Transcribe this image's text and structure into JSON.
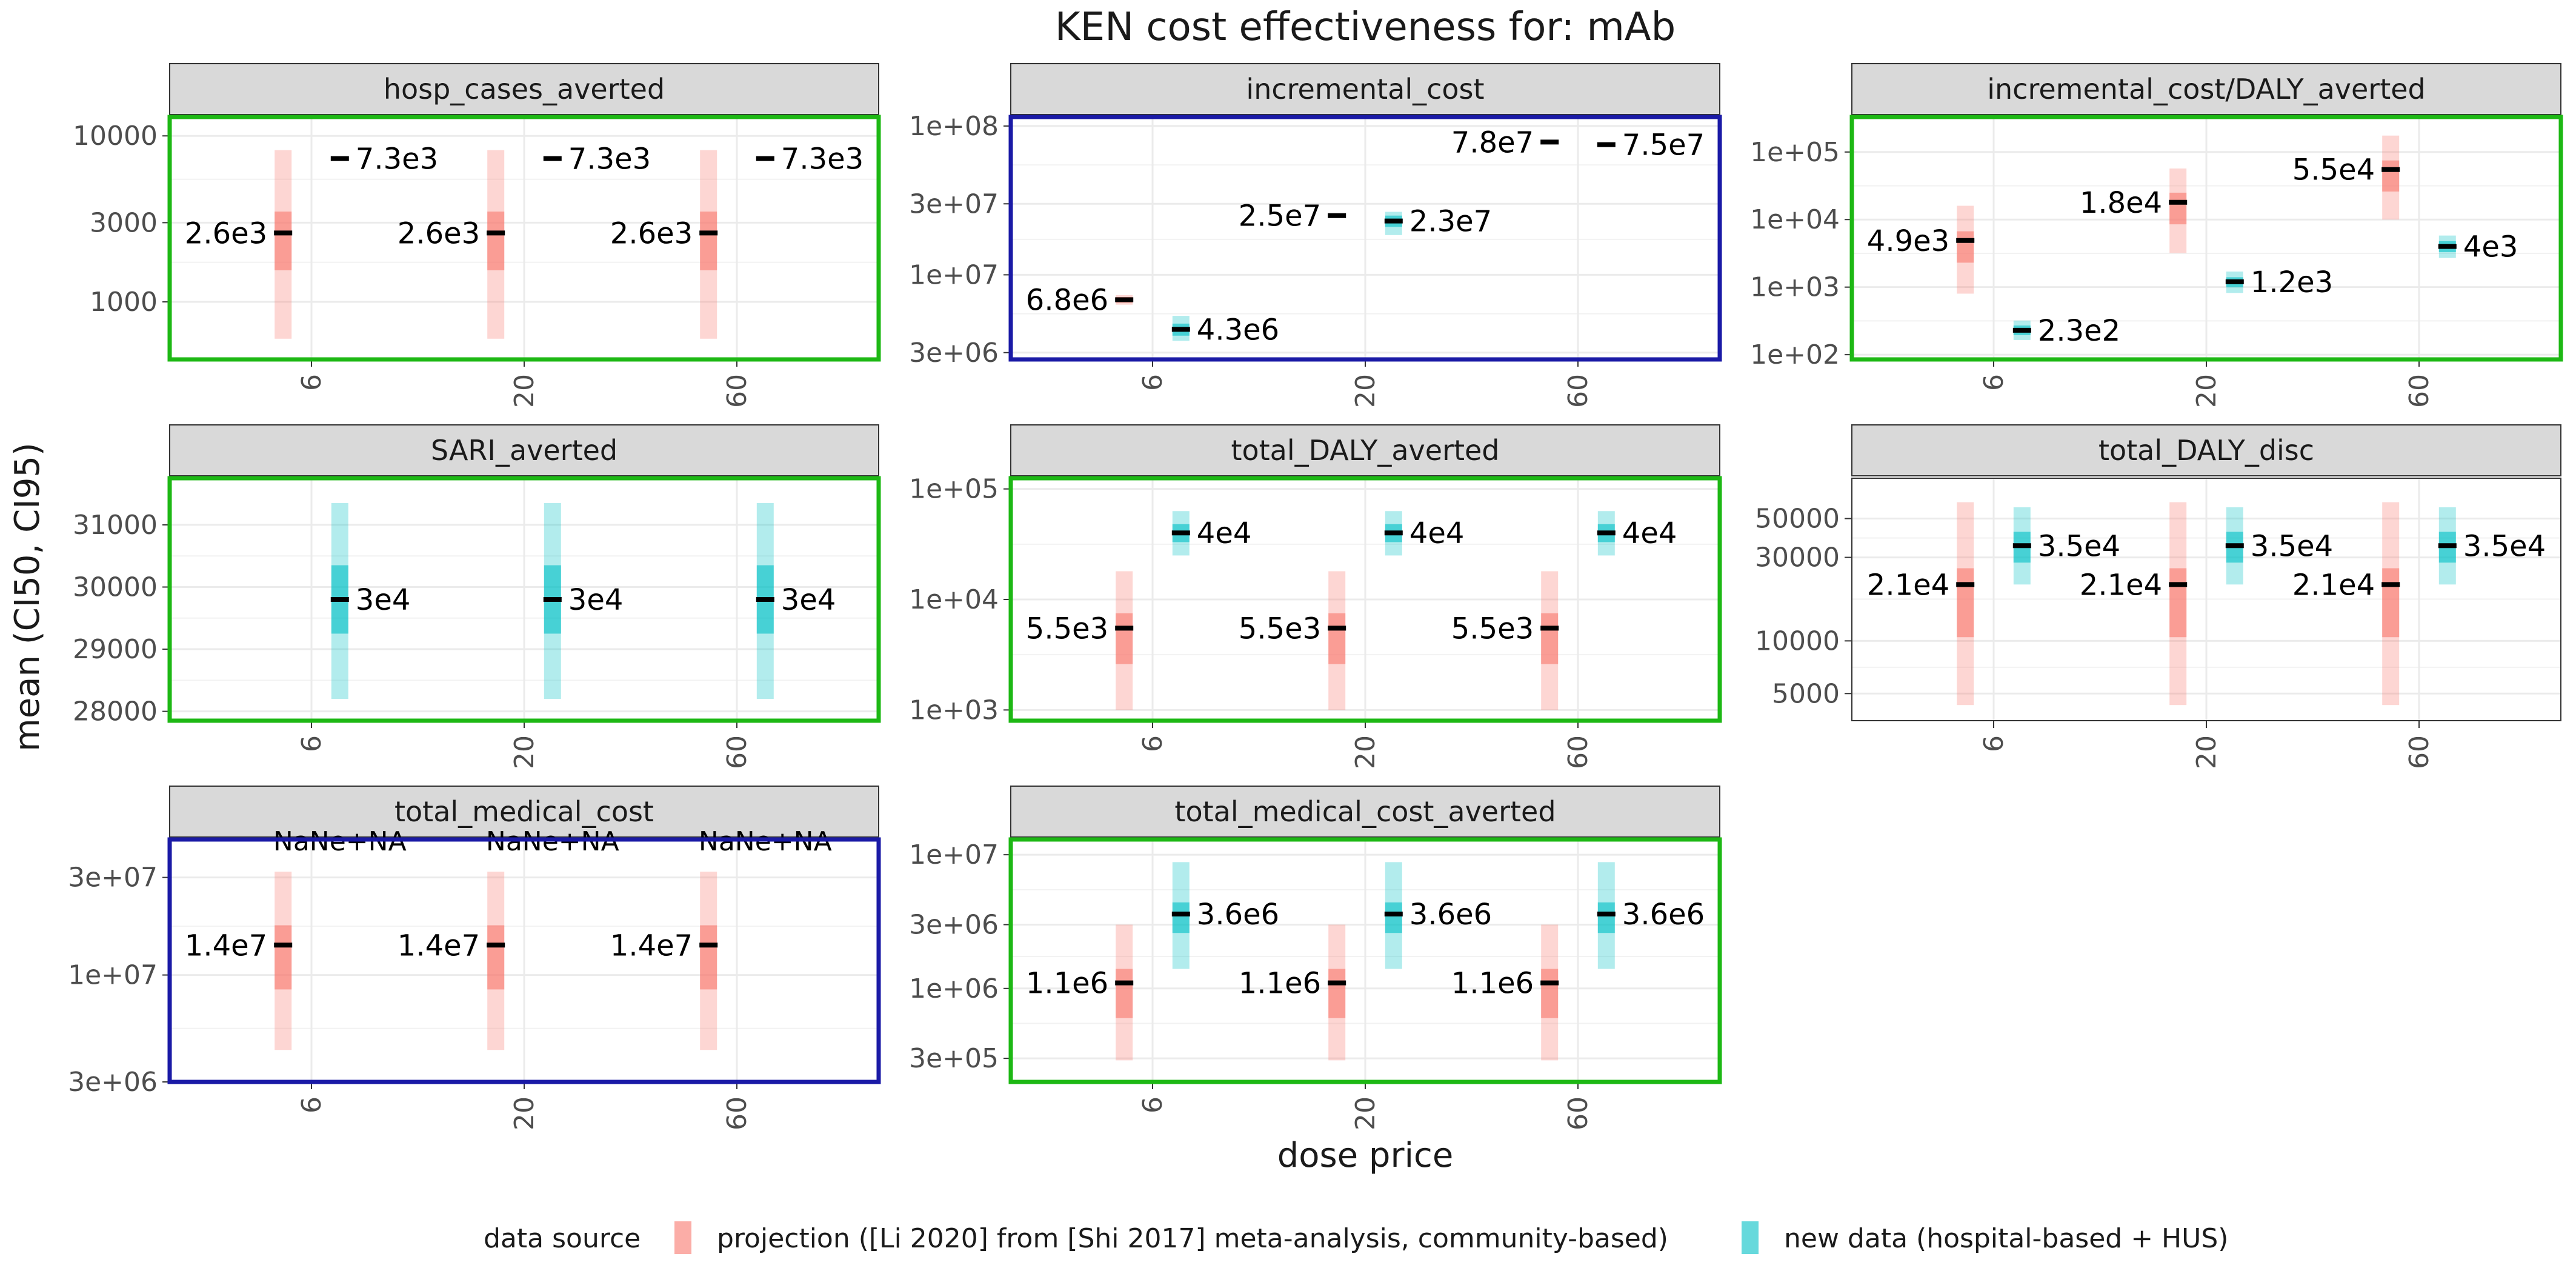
{
  "title": "KEN cost effectiveness for: mAb",
  "xlabel": "dose price",
  "ylabel": "mean (CI50, CI95)",
  "legend": {
    "title": "data source",
    "items": [
      {
        "label": "projection ([Li 2020] from [Shi 2017] meta-analysis, community-based)",
        "color": "#F8766D"
      },
      {
        "label": "new data (hospital-based + HUS)",
        "color": "#00BFC4"
      }
    ],
    "position": "bottom"
  },
  "colors": {
    "projection": "#F8766D",
    "new_data": "#00BFC4",
    "border_green": "#1DB814",
    "border_blue": "#1A1AA6",
    "strip_bg": "#D9D9D9"
  },
  "chart_data": [
    {
      "type": "range",
      "facet": "hosp_cases_averted",
      "border": "green",
      "scale": "log",
      "ylim": [
        450,
        13000
      ],
      "yticks": [
        {
          "v": 1000,
          "label": "1000"
        },
        {
          "v": 3000,
          "label": "3000"
        },
        {
          "v": 10000,
          "label": "10000"
        }
      ],
      "categories": [
        "6",
        "20",
        "60"
      ],
      "series": [
        {
          "name": "projection ([Li 2020] from [Shi 2017] meta-analysis, community-based)",
          "points": [
            {
              "x": "6",
              "mean": 2600,
              "ci50": [
                1550,
                3500
              ],
              "ci95": [
                600,
                8200
              ],
              "label": "2.6e3"
            },
            {
              "x": "20",
              "mean": 2600,
              "ci50": [
                1550,
                3500
              ],
              "ci95": [
                600,
                8200
              ],
              "label": "2.6e3"
            },
            {
              "x": "60",
              "mean": 2600,
              "ci50": [
                1550,
                3500
              ],
              "ci95": [
                600,
                8200
              ],
              "label": "2.6e3"
            }
          ]
        },
        {
          "name": "new data (hospital-based + HUS)",
          "points": [
            {
              "x": "6",
              "mean": 7300,
              "ci50": [
                7300,
                7300
              ],
              "ci95": [
                7300,
                7300
              ],
              "label": "7.3e3"
            },
            {
              "x": "20",
              "mean": 7300,
              "ci50": [
                7300,
                7300
              ],
              "ci95": [
                7300,
                7300
              ],
              "label": "7.3e3"
            },
            {
              "x": "60",
              "mean": 7300,
              "ci50": [
                7300,
                7300
              ],
              "ci95": [
                7300,
                7300
              ],
              "label": "7.3e3"
            }
          ]
        }
      ]
    },
    {
      "type": "range",
      "facet": "incremental_cost",
      "border": "blue",
      "scale": "log",
      "ylim": [
        2700000,
        115000000
      ],
      "yticks": [
        {
          "v": 3000000,
          "label": "3e+06"
        },
        {
          "v": 10000000,
          "label": "1e+07"
        },
        {
          "v": 30000000,
          "label": "3e+07"
        },
        {
          "v": 100000000,
          "label": "1e+08"
        }
      ],
      "categories": [
        "6",
        "20",
        "60"
      ],
      "series": [
        {
          "name": "projection ([Li 2020] from [Shi 2017] meta-analysis, community-based)",
          "points": [
            {
              "x": "6",
              "mean": 6800000,
              "ci50": [
                6500000,
                7100000
              ],
              "ci95": [
                6300000,
                7300000
              ],
              "label": "6.8e6"
            },
            {
              "x": "20",
              "mean": 25000000,
              "ci50": [
                25000000,
                25000000
              ],
              "ci95": [
                25000000,
                25000000
              ],
              "label": "2.5e7"
            },
            {
              "x": "60",
              "mean": 78000000,
              "ci50": [
                78000000,
                78000000
              ],
              "ci95": [
                78000000,
                78000000
              ],
              "label": "7.8e7"
            }
          ]
        },
        {
          "name": "new data (hospital-based + HUS)",
          "points": [
            {
              "x": "6",
              "mean": 4300000,
              "ci50": [
                3900000,
                4700000
              ],
              "ci95": [
                3600000,
                5300000
              ],
              "label": "4.3e6"
            },
            {
              "x": "20",
              "mean": 23000000,
              "ci50": [
                21000000,
                25000000
              ],
              "ci95": [
                18500000,
                26500000
              ],
              "label": "2.3e7"
            },
            {
              "x": "60",
              "mean": 75000000,
              "ci50": [
                75000000,
                75000000
              ],
              "ci95": [
                75000000,
                75000000
              ],
              "label": "7.5e7"
            }
          ]
        }
      ]
    },
    {
      "type": "range",
      "facet": "incremental_cost/DALY_averted",
      "border": "green",
      "scale": "log",
      "ylim": [
        85,
        330000
      ],
      "yticks": [
        {
          "v": 100,
          "label": "1e+02"
        },
        {
          "v": 1000,
          "label": "1e+03"
        },
        {
          "v": 10000,
          "label": "1e+04"
        },
        {
          "v": 100000,
          "label": "1e+05"
        }
      ],
      "categories": [
        "6",
        "20",
        "60"
      ],
      "series": [
        {
          "name": "projection ([Li 2020] from [Shi 2017] meta-analysis, community-based)",
          "points": [
            {
              "x": "6",
              "mean": 4900,
              "ci50": [
                2300,
                6700
              ],
              "ci95": [
                800,
                16000
              ],
              "label": "4.9e3"
            },
            {
              "x": "20",
              "mean": 18000,
              "ci50": [
                8500,
                25000
              ],
              "ci95": [
                3200,
                57000
              ],
              "label": "1.8e4"
            },
            {
              "x": "60",
              "mean": 55000,
              "ci50": [
                26000,
                75000
              ],
              "ci95": [
                10000,
                175000
              ],
              "label": "5.5e4"
            }
          ]
        },
        {
          "name": "new data (hospital-based + HUS)",
          "points": [
            {
              "x": "6",
              "mean": 230,
              "ci50": [
                195,
                270
              ],
              "ci95": [
                165,
                320
              ],
              "label": "2.3e2"
            },
            {
              "x": "20",
              "mean": 1200,
              "ci50": [
                1000,
                1400
              ],
              "ci95": [
                820,
                1700
              ],
              "label": "1.2e3"
            },
            {
              "x": "60",
              "mean": 4000,
              "ci50": [
                3300,
                4800
              ],
              "ci95": [
                2700,
                5800
              ],
              "label": "4e3"
            }
          ]
        }
      ]
    },
    {
      "type": "range",
      "facet": "SARI_averted",
      "border": "green",
      "scale": "linear",
      "ylim": [
        27850,
        31750
      ],
      "yticks": [
        {
          "v": 28000,
          "label": "28000"
        },
        {
          "v": 29000,
          "label": "29000"
        },
        {
          "v": 30000,
          "label": "30000"
        },
        {
          "v": 31000,
          "label": "31000"
        }
      ],
      "categories": [
        "6",
        "20",
        "60"
      ],
      "series": [
        {
          "name": "new data (hospital-based + HUS)",
          "points": [
            {
              "x": "6",
              "mean": 29800,
              "ci50": [
                29250,
                30350
              ],
              "ci95": [
                28200,
                31350
              ],
              "label": "3e4"
            },
            {
              "x": "20",
              "mean": 29800,
              "ci50": [
                29250,
                30350
              ],
              "ci95": [
                28200,
                31350
              ],
              "label": "3e4"
            },
            {
              "x": "60",
              "mean": 29800,
              "ci50": [
                29250,
                30350
              ],
              "ci95": [
                28200,
                31350
              ],
              "label": "3e4"
            }
          ]
        }
      ]
    },
    {
      "type": "range",
      "facet": "total_DALY_averted",
      "border": "green",
      "scale": "log",
      "ylim": [
        800,
        125000
      ],
      "yticks": [
        {
          "v": 1000,
          "label": "1e+03"
        },
        {
          "v": 10000,
          "label": "1e+04"
        },
        {
          "v": 100000,
          "label": "1e+05"
        }
      ],
      "categories": [
        "6",
        "20",
        "60"
      ],
      "series": [
        {
          "name": "projection ([Li 2020] from [Shi 2017] meta-analysis, community-based)",
          "points": [
            {
              "x": "6",
              "mean": 5500,
              "ci50": [
                2600,
                7500
              ],
              "ci95": [
                1000,
                18000
              ],
              "label": "5.5e3"
            },
            {
              "x": "20",
              "mean": 5500,
              "ci50": [
                2600,
                7500
              ],
              "ci95": [
                1000,
                18000
              ],
              "label": "5.5e3"
            },
            {
              "x": "60",
              "mean": 5500,
              "ci50": [
                2600,
                7500
              ],
              "ci95": [
                1000,
                18000
              ],
              "label": "5.5e3"
            }
          ]
        },
        {
          "name": "new data (hospital-based + HUS)",
          "points": [
            {
              "x": "6",
              "mean": 40000,
              "ci50": [
                33000,
                48000
              ],
              "ci95": [
                25000,
                63000
              ],
              "label": "4e4"
            },
            {
              "x": "20",
              "mean": 40000,
              "ci50": [
                33000,
                48000
              ],
              "ci95": [
                25000,
                63000
              ],
              "label": "4e4"
            },
            {
              "x": "60",
              "mean": 40000,
              "ci50": [
                33000,
                48000
              ],
              "ci95": [
                25000,
                63000
              ],
              "label": "4e4"
            }
          ]
        }
      ]
    },
    {
      "type": "range",
      "facet": "total_DALY_disc",
      "border": "none",
      "scale": "log",
      "ylim": [
        3500,
        85000
      ],
      "yticks": [
        {
          "v": 5000,
          "label": "5000"
        },
        {
          "v": 10000,
          "label": "10000"
        },
        {
          "v": 30000,
          "label": "30000"
        },
        {
          "v": 50000,
          "label": "50000"
        }
      ],
      "categories": [
        "6",
        "20",
        "60"
      ],
      "series": [
        {
          "name": "projection ([Li 2020] from [Shi 2017] meta-analysis, community-based)",
          "points": [
            {
              "x": "6",
              "mean": 21000,
              "ci50": [
                10500,
                26000
              ],
              "ci95": [
                4300,
                62000
              ],
              "label": "2.1e4"
            },
            {
              "x": "20",
              "mean": 21000,
              "ci50": [
                10500,
                26000
              ],
              "ci95": [
                4300,
                62000
              ],
              "label": "2.1e4"
            },
            {
              "x": "60",
              "mean": 21000,
              "ci50": [
                10500,
                26000
              ],
              "ci95": [
                4300,
                62000
              ],
              "label": "2.1e4"
            }
          ]
        },
        {
          "name": "new data (hospital-based + HUS)",
          "points": [
            {
              "x": "6",
              "mean": 35000,
              "ci50": [
                28000,
                42000
              ],
              "ci95": [
                21000,
                58000
              ],
              "label": "3.5e4"
            },
            {
              "x": "20",
              "mean": 35000,
              "ci50": [
                28000,
                42000
              ],
              "ci95": [
                21000,
                58000
              ],
              "label": "3.5e4"
            },
            {
              "x": "60",
              "mean": 35000,
              "ci50": [
                28000,
                42000
              ],
              "ci95": [
                21000,
                58000
              ],
              "label": "3.5e4"
            }
          ]
        }
      ]
    },
    {
      "type": "range",
      "facet": "total_medical_cost",
      "border": "blue",
      "scale": "log",
      "ylim": [
        3000000,
        46000000
      ],
      "yticks": [
        {
          "v": 3000000,
          "label": "3e+06"
        },
        {
          "v": 10000000,
          "label": "1e+07"
        },
        {
          "v": 30000000,
          "label": "3e+07"
        }
      ],
      "categories": [
        "6",
        "20",
        "60"
      ],
      "series": [
        {
          "name": "projection ([Li 2020] from [Shi 2017] meta-analysis, community-based)",
          "points": [
            {
              "x": "6",
              "mean": 14000000,
              "ci50": [
                8500000,
                17500000
              ],
              "ci95": [
                4300000,
                32000000
              ],
              "label": "1.4e7"
            },
            {
              "x": "20",
              "mean": 14000000,
              "ci50": [
                8500000,
                17500000
              ],
              "ci95": [
                4300000,
                32000000
              ],
              "label": "1.4e7"
            },
            {
              "x": "60",
              "mean": 14000000,
              "ci50": [
                8500000,
                17500000
              ],
              "ci95": [
                4300000,
                32000000
              ],
              "label": "1.4e7"
            }
          ]
        },
        {
          "name": "new data (hospital-based + HUS)",
          "points": [
            {
              "x": "6",
              "mean": null,
              "label": "NaNe+NA"
            },
            {
              "x": "20",
              "mean": null,
              "label": "NaNe+NA"
            },
            {
              "x": "60",
              "mean": null,
              "label": "NaNe+NA"
            }
          ]
        }
      ]
    },
    {
      "type": "range",
      "facet": "total_medical_cost_averted",
      "border": "green",
      "scale": "log",
      "ylim": [
        200000,
        13000000
      ],
      "yticks": [
        {
          "v": 300000,
          "label": "3e+05"
        },
        {
          "v": 1000000,
          "label": "1e+06"
        },
        {
          "v": 3000000,
          "label": "3e+06"
        },
        {
          "v": 10000000,
          "label": "1e+07"
        }
      ],
      "categories": [
        "6",
        "20",
        "60"
      ],
      "series": [
        {
          "name": "projection ([Li 2020] from [Shi 2017] meta-analysis, community-based)",
          "points": [
            {
              "x": "6",
              "mean": 1100000,
              "ci50": [
                600000,
                1400000
              ],
              "ci95": [
                290000,
                3000000
              ],
              "label": "1.1e6"
            },
            {
              "x": "20",
              "mean": 1100000,
              "ci50": [
                600000,
                1400000
              ],
              "ci95": [
                290000,
                3000000
              ],
              "label": "1.1e6"
            },
            {
              "x": "60",
              "mean": 1100000,
              "ci50": [
                600000,
                1400000
              ],
              "ci95": [
                290000,
                3000000
              ],
              "label": "1.1e6"
            }
          ]
        },
        {
          "name": "new data (hospital-based + HUS)",
          "points": [
            {
              "x": "6",
              "mean": 3600000,
              "ci50": [
                2600000,
                4400000
              ],
              "ci95": [
                1400000,
                8800000
              ],
              "label": "3.6e6"
            },
            {
              "x": "20",
              "mean": 3600000,
              "ci50": [
                2600000,
                4400000
              ],
              "ci95": [
                1400000,
                8800000
              ],
              "label": "3.6e6"
            },
            {
              "x": "60",
              "mean": 3600000,
              "ci50": [
                2600000,
                4400000
              ],
              "ci95": [
                1400000,
                8800000
              ],
              "label": "3.6e6"
            }
          ]
        }
      ]
    }
  ]
}
